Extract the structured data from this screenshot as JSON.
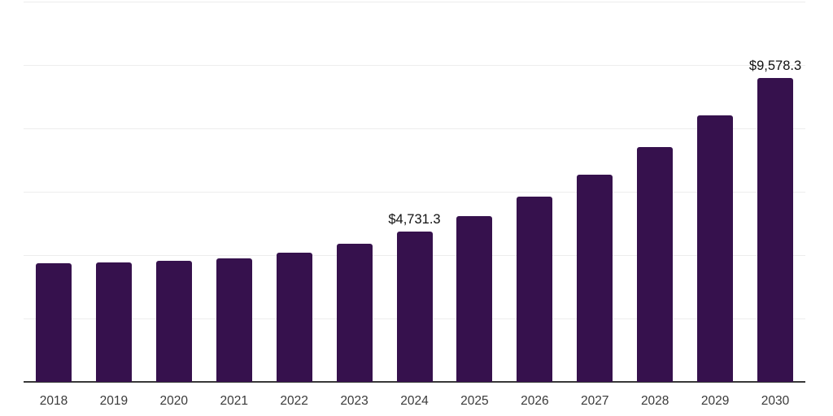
{
  "chart_data": {
    "type": "bar",
    "title": "",
    "xlabel": "",
    "ylabel": "",
    "categories": [
      "2018",
      "2019",
      "2020",
      "2021",
      "2022",
      "2023",
      "2024",
      "2025",
      "2026",
      "2027",
      "2028",
      "2029",
      "2030"
    ],
    "values": [
      3731.0,
      3779.0,
      3820.0,
      3898.0,
      4089.0,
      4369.0,
      4731.3,
      5225.0,
      5846.0,
      6546.0,
      7423.0,
      8420.0,
      9578.3
    ],
    "data_labels": {
      "2024": "$4,731.3",
      "2030": "$9,578.3"
    },
    "ylim": [
      0,
      12000
    ],
    "gridline_step": 2000,
    "grid": true,
    "legend": false,
    "colors": {
      "bar": "#36114D",
      "gridline": "#ededed",
      "axis_line": "#383838",
      "tick_label": "#3a3a3a",
      "data_label": "#111111",
      "background": "#ffffff"
    }
  }
}
